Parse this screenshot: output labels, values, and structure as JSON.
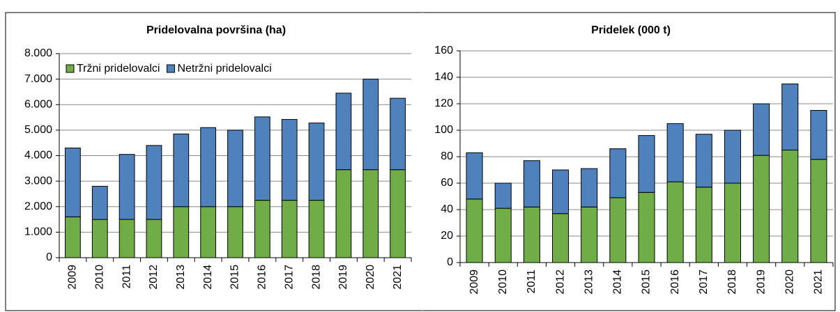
{
  "chart_data": [
    {
      "type": "bar",
      "stacked": true,
      "title": "Pridelovalna površina (ha)",
      "categories": [
        "2009",
        "2010",
        "2011",
        "2012",
        "2013",
        "2014",
        "2015",
        "2016",
        "2017",
        "2018",
        "2019",
        "2020",
        "2021"
      ],
      "series": [
        {
          "name": "Tržni pridelovalci",
          "color": "#70ad47",
          "values": [
            1600,
            1500,
            1500,
            1500,
            2000,
            2000,
            2000,
            2250,
            2250,
            2250,
            3450,
            3450,
            3450
          ]
        },
        {
          "name": "Netržni pridelovalci",
          "color": "#4f81bd",
          "values": [
            2700,
            1300,
            2550,
            2900,
            2850,
            3100,
            3000,
            3270,
            3170,
            3030,
            3000,
            3550,
            2800
          ]
        }
      ],
      "ylim": [
        0,
        8000
      ],
      "yticks": [
        0,
        {
          "value": 1000,
          "label": "1.000"
        },
        {
          "value": 2000,
          "label": "2.000"
        },
        {
          "value": 3000,
          "label": "3.000"
        },
        {
          "value": 4000,
          "label": "4.000"
        },
        {
          "value": 5000,
          "label": "5.000"
        },
        {
          "value": 6000,
          "label": "6.000"
        },
        {
          "value": 7000,
          "label": "7.000"
        },
        {
          "value": 8000,
          "label": "8.000"
        }
      ],
      "grid": true,
      "legend": "top-left"
    },
    {
      "type": "bar",
      "stacked": true,
      "title": "Pridelek (000 t)",
      "categories": [
        "2009",
        "2010",
        "2011",
        "2012",
        "2013",
        "2014",
        "2015",
        "2016",
        "2017",
        "2018",
        "2019",
        "2020",
        "2021"
      ],
      "series": [
        {
          "color": "#70ad47",
          "values": [
            48,
            41,
            42,
            37,
            42,
            49,
            53,
            61,
            57,
            60,
            81,
            85,
            78
          ]
        },
        {
          "color": "#4f81bd",
          "values": [
            35,
            19,
            35,
            33,
            29,
            37,
            43,
            44,
            40,
            40,
            39,
            50,
            37
          ]
        }
      ],
      "ylim": [
        0,
        160
      ],
      "yticks": [
        0,
        20,
        40,
        60,
        80,
        100,
        120,
        140,
        160
      ],
      "grid": true
    }
  ]
}
